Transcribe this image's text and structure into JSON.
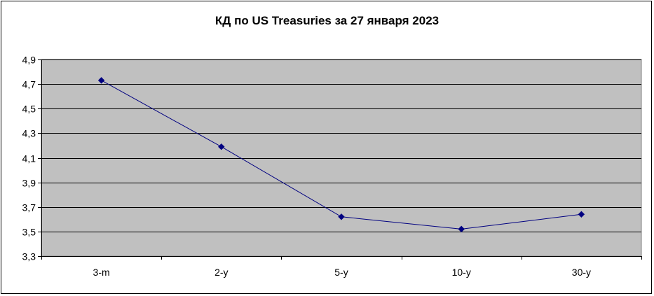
{
  "chart_data": {
    "type": "line",
    "title": "КД по US Treasuries за 27 января 2023",
    "xlabel": "",
    "ylabel": "",
    "categories": [
      "3-m",
      "2-y",
      "5-y",
      "10-y",
      "30-y"
    ],
    "series": [
      {
        "values": [
          4.73,
          4.19,
          3.62,
          3.52,
          3.64
        ]
      }
    ],
    "ylim": [
      3.3,
      4.9
    ],
    "yticks": [
      "3,3",
      "3,5",
      "3,7",
      "3,9",
      "4,1",
      "4,3",
      "4,5",
      "4,7",
      "4,9"
    ],
    "grid": true,
    "legend": "none",
    "colors": {
      "plot_background": "#c0c0c0",
      "line": "#000080",
      "marker": "#000080",
      "gridline": "#000000"
    }
  }
}
